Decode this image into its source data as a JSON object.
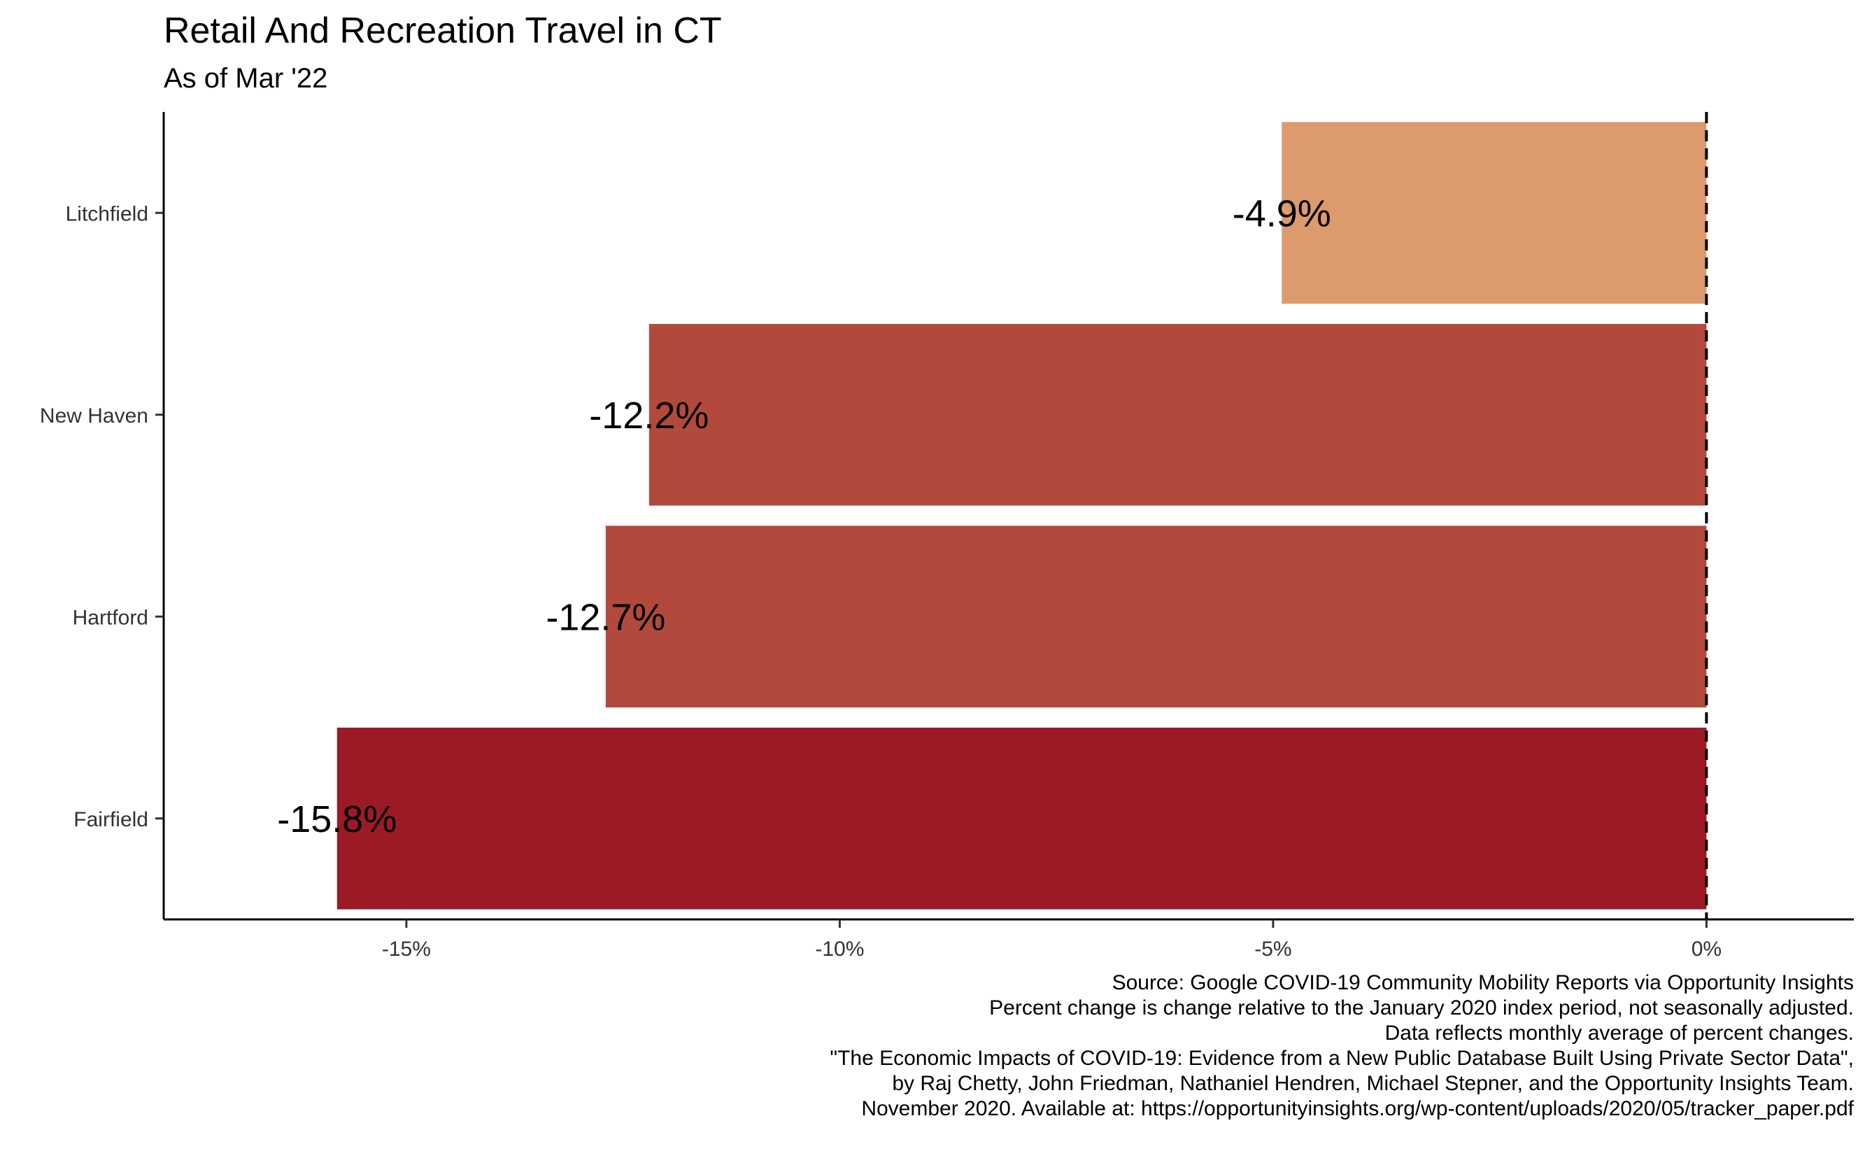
{
  "title": "Retail And Recreation Travel in CT",
  "subtitle": "As of Mar '22",
  "caption": [
    "Source: Google COVID-19 Community Mobility Reports via Opportunity Insights",
    "Percent change is change relative to the January 2020 index period, not seasonally adjusted.",
    "Data reflects monthly average of percent changes.",
    "\"The Economic Impacts of COVID-19: Evidence from a New Public Database Built Using Private Sector Data\",",
    "by Raj Chetty, John Friedman, Nathaniel Hendren, Michael Stepner, and the Opportunity Insights Team.",
    "November 2020. Available at: https://opportunityinsights.org/wp-content/uploads/2020/05/tracker_paper.pdf"
  ],
  "chart_data": {
    "type": "bar",
    "orientation": "horizontal",
    "title": "Retail And Recreation Travel in CT",
    "subtitle": "As of Mar '22",
    "xlabel": "",
    "ylabel": "",
    "categories": [
      "Litchfield",
      "New Haven",
      "Hartford",
      "Fairfield"
    ],
    "values": [
      -4.9,
      -12.2,
      -12.7,
      -15.8
    ],
    "labels": [
      "-4.9%",
      "-12.2%",
      "-12.7%",
      "-15.8%"
    ],
    "colors": [
      "#DD9A6C",
      "#B3493D",
      "#B3493D",
      "#9B1A26"
    ],
    "xlim": [
      -17.8,
      1.7
    ],
    "xticks": [
      -15,
      -10,
      -5,
      0
    ],
    "xtick_labels": [
      "-15%",
      "-10%",
      "-5%",
      "0%"
    ],
    "reference_line": {
      "x": 0,
      "style": "dashed"
    },
    "grid": false,
    "legend": "none"
  }
}
